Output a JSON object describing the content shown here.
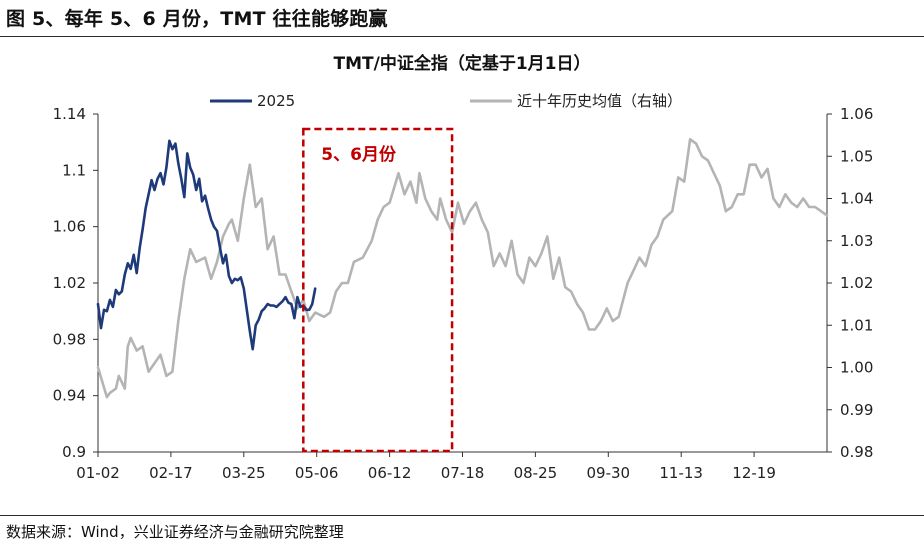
{
  "figure": {
    "title": "图 5、每年 5、6 月份，TMT 往往能够跑赢",
    "source": "数据来源：Wind，兴业证券经济与金融研究院整理"
  },
  "colors": {
    "series_2025": "#1f3a7a",
    "series_avg": "#b4b4b4",
    "annotation": "#c00000",
    "axis": "#333333"
  },
  "chart_data": {
    "type": "line",
    "title": "TMT/中证全指（定基于1月1日）",
    "x_ticks": [
      "01-02",
      "02-17",
      "03-25",
      "05-06",
      "06-12",
      "07-18",
      "08-25",
      "09-30",
      "11-13",
      "12-19"
    ],
    "x_range": [
      0,
      245
    ],
    "y_left": {
      "range": [
        0.9,
        1.14
      ],
      "ticks": [
        "0.9",
        "0.94",
        "0.98",
        "1.02",
        "1.06",
        "1.1",
        "1.14"
      ]
    },
    "y_right": {
      "range": [
        0.98,
        1.06
      ],
      "ticks": [
        "0.98",
        "0.99",
        "1.00",
        "1.01",
        "1.02",
        "1.03",
        "1.04",
        "1.05",
        "1.06"
      ]
    },
    "legend_position": "top",
    "grid": false,
    "annotation": {
      "label": "5、6月份",
      "x_start": 69,
      "x_end": 119
    },
    "series": [
      {
        "name": "2025",
        "axis": "left",
        "x": [
          0,
          1,
          2,
          3,
          4,
          5,
          6,
          7,
          8,
          9,
          10,
          11,
          12,
          13,
          14,
          15,
          16,
          17,
          18,
          19,
          20,
          21,
          22,
          23,
          24,
          25,
          26,
          27,
          28,
          29,
          30,
          31,
          32,
          33,
          34,
          35,
          36,
          37,
          38,
          39,
          40,
          41,
          42,
          43,
          44,
          45,
          46,
          47,
          48,
          49,
          50,
          51,
          52,
          53,
          54,
          55,
          56,
          57,
          58,
          59,
          60,
          61,
          62,
          63,
          64,
          65,
          66,
          67,
          68,
          69,
          70,
          71,
          72,
          73
        ],
        "y": [
          1.005,
          0.988,
          1.001,
          1.0,
          1.008,
          1.003,
          1.015,
          1.012,
          1.014,
          1.026,
          1.034,
          1.03,
          1.04,
          1.027,
          1.045,
          1.058,
          1.073,
          1.083,
          1.093,
          1.086,
          1.094,
          1.098,
          1.09,
          1.102,
          1.121,
          1.115,
          1.119,
          1.105,
          1.094,
          1.081,
          1.112,
          1.102,
          1.097,
          1.086,
          1.094,
          1.078,
          1.082,
          1.073,
          1.065,
          1.06,
          1.057,
          1.045,
          1.034,
          1.04,
          1.025,
          1.02,
          1.023,
          1.022,
          1.024,
          1.016,
          1.001,
          0.986,
          0.973,
          0.99,
          0.994,
          1.0,
          1.002,
          1.005,
          1.004,
          1.004,
          1.003,
          1.005,
          1.007,
          1.01,
          1.006,
          1.005,
          0.995,
          1.01,
          1.003,
          1.004,
          1.001,
          1.001,
          1.005,
          1.016
        ]
      },
      {
        "name": "近十年历史均值（右轴）",
        "axis": "right",
        "x": [
          0,
          3,
          4,
          6,
          7,
          9,
          10,
          11,
          13,
          15,
          17,
          19,
          21,
          23,
          25,
          27,
          29,
          31,
          33,
          36,
          38,
          40,
          42,
          44,
          45,
          47,
          49,
          51,
          53,
          55,
          57,
          59,
          61,
          63,
          65,
          67,
          69,
          71,
          73,
          76,
          78,
          80,
          82,
          84,
          86,
          89,
          92,
          94,
          96,
          98,
          101,
          103,
          105,
          107,
          108,
          110,
          112,
          114,
          115,
          117,
          119,
          121,
          123,
          125,
          127,
          129,
          131,
          133,
          135,
          137,
          139,
          141,
          143,
          145,
          147,
          149,
          151,
          153,
          155,
          157,
          159,
          161,
          163,
          165,
          167,
          169,
          171,
          173,
          175,
          178,
          180,
          182,
          184,
          186,
          188,
          190,
          193,
          195,
          197,
          199,
          201,
          203,
          205,
          207,
          209,
          211,
          213,
          215,
          217,
          219,
          221,
          223,
          225,
          227,
          229,
          231,
          233,
          235,
          237,
          239,
          241,
          243,
          245
        ],
        "y": [
          1.0,
          0.993,
          0.994,
          0.995,
          0.998,
          0.995,
          1.005,
          1.007,
          1.004,
          1.005,
          0.999,
          1.001,
          1.003,
          0.998,
          0.999,
          1.011,
          1.021,
          1.028,
          1.025,
          1.026,
          1.021,
          1.025,
          1.031,
          1.034,
          1.035,
          1.03,
          1.04,
          1.048,
          1.038,
          1.04,
          1.028,
          1.031,
          1.022,
          1.022,
          1.018,
          1.014,
          1.016,
          1.011,
          1.013,
          1.012,
          1.013,
          1.018,
          1.02,
          1.02,
          1.025,
          1.026,
          1.03,
          1.035,
          1.038,
          1.039,
          1.046,
          1.041,
          1.044,
          1.039,
          1.046,
          1.04,
          1.037,
          1.035,
          1.04,
          1.035,
          1.032,
          1.039,
          1.034,
          1.037,
          1.039,
          1.035,
          1.032,
          1.024,
          1.027,
          1.024,
          1.03,
          1.022,
          1.02,
          1.026,
          1.024,
          1.027,
          1.031,
          1.021,
          1.026,
          1.019,
          1.018,
          1.015,
          1.013,
          1.009,
          1.009,
          1.011,
          1.014,
          1.011,
          1.012,
          1.02,
          1.023,
          1.026,
          1.024,
          1.029,
          1.031,
          1.035,
          1.037,
          1.045,
          1.044,
          1.054,
          1.053,
          1.05,
          1.049,
          1.046,
          1.043,
          1.037,
          1.038,
          1.041,
          1.041,
          1.048,
          1.048,
          1.045,
          1.047,
          1.04,
          1.038,
          1.041,
          1.039,
          1.038,
          1.04,
          1.038,
          1.038,
          1.037,
          1.036
        ]
      }
    ]
  }
}
